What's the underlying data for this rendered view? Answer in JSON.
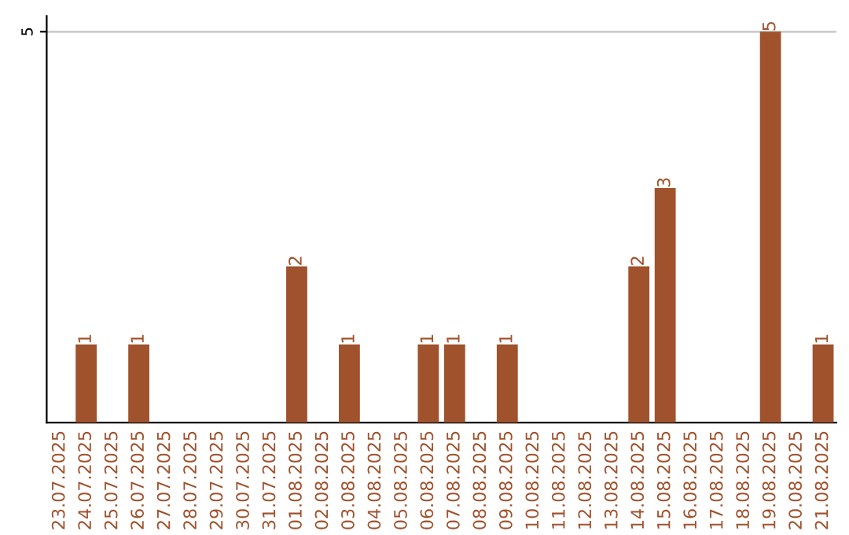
{
  "chart_data": {
    "type": "bar",
    "categories": [
      "23.07.2025",
      "24.07.2025",
      "25.07.2025",
      "26.07.2025",
      "27.07.2025",
      "28.07.2025",
      "29.07.2025",
      "30.07.2025",
      "31.07.2025",
      "01.08.2025",
      "02.08.2025",
      "03.08.2025",
      "04.08.2025",
      "05.08.2025",
      "06.08.2025",
      "07.08.2025",
      "08.08.2025",
      "09.08.2025",
      "10.08.2025",
      "11.08.2025",
      "12.08.2025",
      "13.08.2025",
      "14.08.2025",
      "15.08.2025",
      "16.08.2025",
      "17.08.2025",
      "18.08.2025",
      "19.08.2025",
      "20.08.2025",
      "21.08.2025"
    ],
    "values": [
      0,
      1,
      0,
      1,
      0,
      0,
      0,
      0,
      0,
      2,
      0,
      1,
      0,
      0,
      1,
      1,
      0,
      1,
      0,
      0,
      0,
      0,
      2,
      3,
      0,
      0,
      0,
      5,
      0,
      1
    ],
    "value_labels": [
      null,
      "1",
      null,
      "1",
      null,
      null,
      null,
      null,
      null,
      "2",
      null,
      "1",
      null,
      null,
      "1",
      "1",
      null,
      "1",
      null,
      null,
      null,
      null,
      "2",
      "3",
      null,
      null,
      null,
      "5",
      null,
      "1"
    ],
    "color": "#a0522d",
    "ylim": [
      0,
      5.2
    ],
    "yticks": [
      5
    ],
    "grid": "y"
  }
}
